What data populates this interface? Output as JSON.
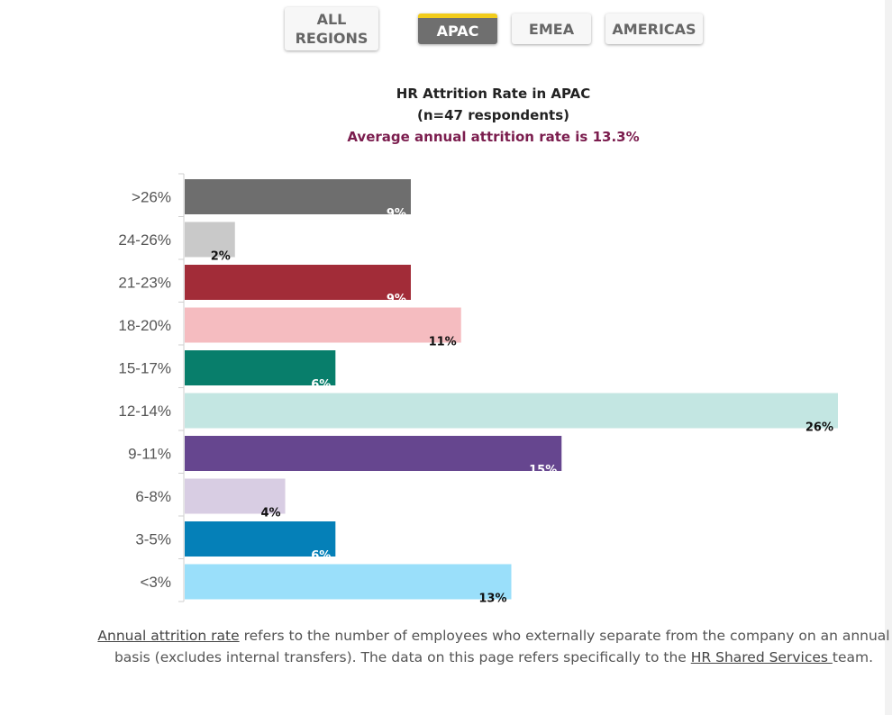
{
  "tabs": [
    {
      "line1": "ALL",
      "line2": "REGIONS",
      "active": false
    },
    {
      "line1": "APAC",
      "line2": "",
      "active": true
    },
    {
      "line1": "EMEA",
      "line2": "",
      "active": false
    },
    {
      "line1": "AMERICAS",
      "line2": "",
      "active": false
    }
  ],
  "chart_data": {
    "type": "bar",
    "orientation": "horizontal",
    "title": "HR Attrition Rate in APAC",
    "subtitle": "(n=47 respondents)",
    "annotation": "Average annual attrition rate is 13.3%",
    "categories": [
      ">26%",
      "24-26%",
      "21-23%",
      "18-20%",
      "15-17%",
      "12-14%",
      "9-11%",
      "6-8%",
      "3-5%",
      "<3%"
    ],
    "values": [
      9,
      2,
      9,
      11,
      6,
      26,
      15,
      4,
      6,
      13
    ],
    "labels": [
      "9%",
      "2%",
      "9%",
      "11%",
      "6%",
      "26%",
      "15%",
      "4%",
      "6%",
      "13%"
    ],
    "colors": [
      "#6e6e6e",
      "#c9c9c9",
      "#a22c38",
      "#f5bcc0",
      "#087e6b",
      "#c3e6e2",
      "#66468f",
      "#d8cde3",
      "#0580b8",
      "#9adffa"
    ],
    "label_colors": [
      "#ffffff",
      "#111111",
      "#ffffff",
      "#111111",
      "#ffffff",
      "#111111",
      "#ffffff",
      "#111111",
      "#ffffff",
      "#111111"
    ],
    "xlim": [
      0,
      26
    ],
    "grid": false
  },
  "footnote": {
    "link1": "Annual attrition rate",
    "text1": " refers to the number of employees who externally separate from the company on an annual basis (excludes internal transfers). The data on this page refers specifically to the ",
    "link2": "HR Shared Services ",
    "text2": "team."
  }
}
